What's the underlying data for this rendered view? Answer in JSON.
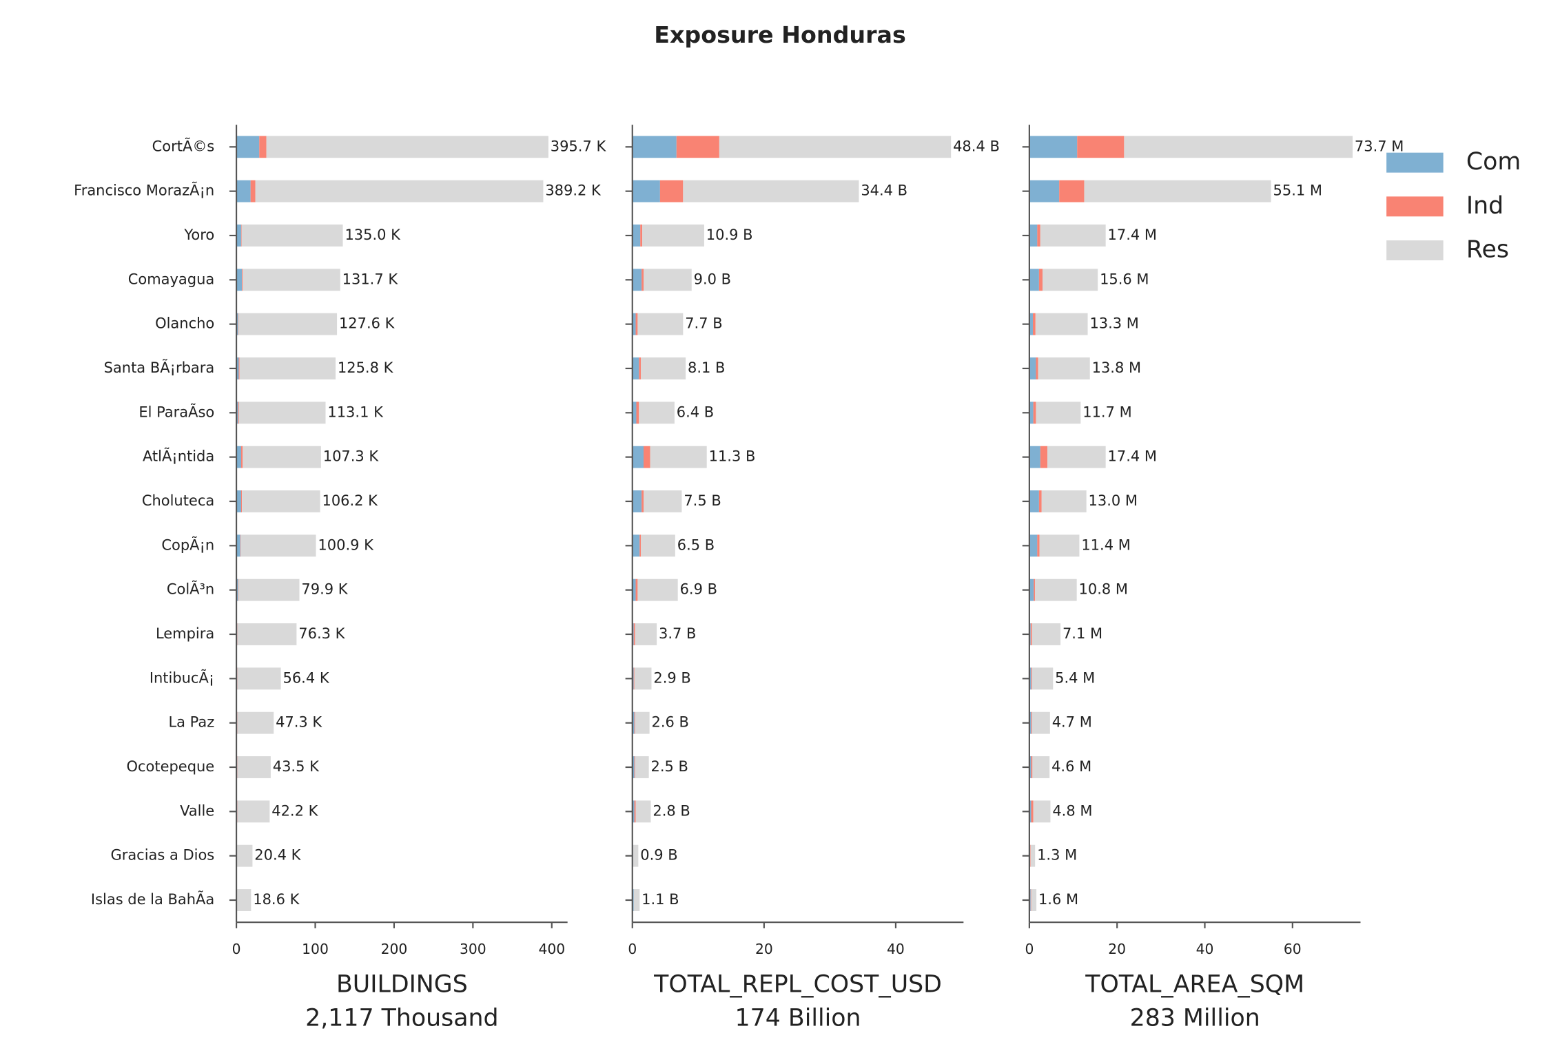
{
  "title": "Exposure Honduras",
  "chart_data": [
    {
      "type": "barh_stacked",
      "categories": [
        "CortÃ©s",
        "Francisco MorazÃ¡n",
        "Yoro",
        "Comayagua",
        "Olancho",
        "Santa BÃ¡rbara",
        "El ParaÃ­so",
        "AtlÃ¡ntida",
        "Choluteca",
        "CopÃ¡n",
        "ColÃ³n",
        "Lempira",
        "IntibucÃ¡",
        "La Paz",
        "Ocotepeque",
        "Valle",
        "Gracias a Dios",
        "Islas de la BahÃ­a"
      ],
      "series": [
        {
          "name": "Com",
          "color": "#7fb0d2",
          "values": [
            29,
            18,
            6,
            7,
            2,
            3,
            2,
            6,
            6,
            5,
            2,
            1,
            1,
            1,
            1,
            1,
            0.5,
            0.5
          ]
        },
        {
          "name": "Ind",
          "color": "#f98373",
          "values": [
            9,
            6,
            0.5,
            1,
            0.5,
            1,
            1,
            2,
            1,
            0.5,
            0.5,
            0.3,
            0.3,
            0.3,
            0.3,
            0.3,
            0.1,
            0.1
          ]
        },
        {
          "name": "Res",
          "color": "#d9d9d9",
          "values": [
            357.7,
            365.2,
            128.5,
            123.7,
            125.1,
            121.8,
            110.1,
            99.3,
            99.2,
            95.4,
            77.4,
            75.0,
            55.1,
            46.0,
            42.2,
            40.9,
            19.8,
            18.0
          ]
        }
      ],
      "totals": {
        "values": [
          395.7,
          389.2,
          135.0,
          131.7,
          127.6,
          125.8,
          113.1,
          107.3,
          106.2,
          100.9,
          79.9,
          76.3,
          56.4,
          47.3,
          43.5,
          42.2,
          20.4,
          18.6
        ],
        "value_labels": [
          "395.7 K",
          "389.2 K",
          "135.0 K",
          "131.7 K",
          "127.6 K",
          "125.8 K",
          "113.1 K",
          "107.3 K",
          "106.2 K",
          "100.9 K",
          "79.9 K",
          "76.3 K",
          "56.4 K",
          "47.3 K",
          "43.5 K",
          "42.2 K",
          "20.4 K",
          "18.6 K"
        ]
      },
      "xlim": [
        0,
        420
      ],
      "xticks": [
        0,
        100,
        200,
        300,
        400
      ],
      "xlabel": [
        "BUILDINGS",
        "2,117 Thousand"
      ]
    },
    {
      "type": "barh_stacked",
      "series": [
        {
          "name": "Com",
          "color": "#7fb0d2",
          "values": [
            6.7,
            4.2,
            1.2,
            1.4,
            0.5,
            1.0,
            0.6,
            1.7,
            1.4,
            1.1,
            0.5,
            0.2,
            0.2,
            0.3,
            0.3,
            0.3,
            0.1,
            0.2
          ]
        },
        {
          "name": "Ind",
          "color": "#f98373",
          "values": [
            6.5,
            3.5,
            0.3,
            0.3,
            0.3,
            0.3,
            0.4,
            1.0,
            0.3,
            0.2,
            0.3,
            0.2,
            0.1,
            0.1,
            0.1,
            0.2,
            0,
            0
          ]
        },
        {
          "name": "Res",
          "color": "#d9d9d9",
          "values": [
            35.2,
            26.7,
            9.4,
            7.3,
            6.9,
            6.8,
            5.4,
            8.6,
            5.8,
            5.2,
            6.1,
            3.3,
            2.6,
            2.2,
            2.1,
            2.3,
            0.8,
            0.9
          ]
        }
      ],
      "totals": {
        "values": [
          48.4,
          34.4,
          10.9,
          9.0,
          7.7,
          8.1,
          6.4,
          11.3,
          7.5,
          6.5,
          6.9,
          3.7,
          2.9,
          2.6,
          2.5,
          2.8,
          0.9,
          1.1
        ],
        "value_labels": [
          "48.4 B",
          "34.4 B",
          "10.9 B",
          "9.0 B",
          "7.7 B",
          "8.1 B",
          "6.4 B",
          "11.3 B",
          "7.5 B",
          "6.5 B",
          "6.9 B",
          "3.7 B",
          "2.9 B",
          "2.6 B",
          "2.5 B",
          "2.8 B",
          "0.9 B",
          "1.1 B"
        ]
      },
      "xlim": [
        0,
        50.3
      ],
      "xticks": [
        0,
        20,
        40
      ],
      "xlabel": [
        "TOTAL_REPL_COST_USD",
        "174 Billion"
      ]
    },
    {
      "type": "barh_stacked",
      "series": [
        {
          "name": "Com",
          "color": "#7fb0d2",
          "values": [
            10.9,
            6.8,
            1.8,
            2.2,
            0.8,
            1.5,
            0.9,
            2.5,
            2.2,
            1.8,
            1.0,
            0.3,
            0.4,
            0.4,
            0.4,
            0.4,
            0.2,
            0.3
          ]
        },
        {
          "name": "Ind",
          "color": "#f98373",
          "values": [
            10.7,
            5.7,
            0.7,
            0.8,
            0.6,
            0.5,
            0.6,
            1.6,
            0.6,
            0.5,
            0.3,
            0.3,
            0.2,
            0.2,
            0.3,
            0.5,
            0.1,
            0.1
          ]
        },
        {
          "name": "Res",
          "color": "#d9d9d9",
          "values": [
            52.1,
            42.6,
            14.9,
            12.6,
            11.9,
            11.8,
            10.2,
            13.3,
            10.2,
            9.1,
            9.5,
            6.5,
            4.8,
            4.1,
            3.9,
            3.9,
            1.0,
            1.2
          ]
        }
      ],
      "totals": {
        "values": [
          73.7,
          55.1,
          17.4,
          15.6,
          13.3,
          13.8,
          11.7,
          17.4,
          13.0,
          11.4,
          10.8,
          7.1,
          5.4,
          4.7,
          4.6,
          4.8,
          1.3,
          1.6
        ],
        "value_labels": [
          "73.7 M",
          "55.1 M",
          "17.4 M",
          "15.6 M",
          "13.3 M",
          "13.8 M",
          "11.7 M",
          "17.4 M",
          "13.0 M",
          "11.4 M",
          "10.8 M",
          "7.1 M",
          "5.4 M",
          "4.7 M",
          "4.6 M",
          "4.8 M",
          "1.3 M",
          "1.6 M"
        ]
      },
      "xlim": [
        0,
        75.5
      ],
      "xticks": [
        0,
        20,
        40,
        60
      ],
      "xlabel": [
        "TOTAL_AREA_SQM",
        "283 Million"
      ],
      "legend": "right"
    }
  ]
}
